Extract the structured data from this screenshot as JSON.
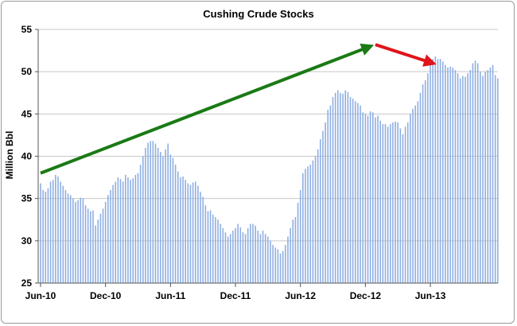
{
  "chart_data": {
    "type": "bar",
    "title": "Cushing Crude Stocks",
    "ylabel": "Million Bbl",
    "xlabel": "",
    "ylim": [
      25,
      55
    ],
    "yticks": [
      25,
      30,
      35,
      40,
      45,
      50,
      55
    ],
    "xticks": [
      {
        "index": 0,
        "label": "Jun-10"
      },
      {
        "index": 26,
        "label": "Dec-10"
      },
      {
        "index": 52,
        "label": "Jun-11"
      },
      {
        "index": 78,
        "label": "Dec-11"
      },
      {
        "index": 104,
        "label": "Jun-12"
      },
      {
        "index": 130,
        "label": "Dec-12"
      },
      {
        "index": 156,
        "label": "Jun-13"
      }
    ],
    "grid": true,
    "bar_color": "#8eaee2",
    "values": [
      36.8,
      36.0,
      35.8,
      36.2,
      37.0,
      37.2,
      37.8,
      37.6,
      37.0,
      36.5,
      36.0,
      35.6,
      35.4,
      35.0,
      34.6,
      34.8,
      35.1,
      35.0,
      34.2,
      33.8,
      33.5,
      33.6,
      31.8,
      32.5,
      33.2,
      33.8,
      34.6,
      35.4,
      36.0,
      36.6,
      37.0,
      37.5,
      37.3,
      37.0,
      37.8,
      37.5,
      37.2,
      37.4,
      37.8,
      38.0,
      39.0,
      40.0,
      41.0,
      41.6,
      41.8,
      41.8,
      41.5,
      41.0,
      40.5,
      40.0,
      40.8,
      41.5,
      40.2,
      39.8,
      39.0,
      38.2,
      37.5,
      37.6,
      37.2,
      36.8,
      36.6,
      36.9,
      37.0,
      36.5,
      35.8,
      35.2,
      34.2,
      33.5,
      33.6,
      33.1,
      32.8,
      32.5,
      32.0,
      31.5,
      31.0,
      30.5,
      30.8,
      31.2,
      31.5,
      32.0,
      31.6,
      31.0,
      30.8,
      31.5,
      32.0,
      32.0,
      31.8,
      31.2,
      30.8,
      31.2,
      30.8,
      30.5,
      30.0,
      29.5,
      29.2,
      29.0,
      28.5,
      28.8,
      29.5,
      30.5,
      31.5,
      32.5,
      32.8,
      34.5,
      36.0,
      38.0,
      38.5,
      38.8,
      39.0,
      39.5,
      40.0,
      40.8,
      42.0,
      43.0,
      44.0,
      45.5,
      46.0,
      47.0,
      47.5,
      47.8,
      47.5,
      47.4,
      47.8,
      47.6,
      47.0,
      46.8,
      46.5,
      46.3,
      46.0,
      45.2,
      45.0,
      44.8,
      45.3,
      45.2,
      44.6,
      44.8,
      44.2,
      43.8,
      43.8,
      43.5,
      43.8,
      44.0,
      44.1,
      44.0,
      43.3,
      42.6,
      43.5,
      44.0,
      45.0,
      45.6,
      46.0,
      46.5,
      47.5,
      48.5,
      49.0,
      49.8,
      50.8,
      51.5,
      51.8,
      51.5,
      51.5,
      51.2,
      50.8,
      50.5,
      50.6,
      50.5,
      50.2,
      49.8,
      49.2,
      49.5,
      49.4,
      49.8,
      50.2,
      51.0,
      51.3,
      51.0,
      50.0,
      49.5,
      50.0,
      50.2,
      50.5,
      50.8,
      49.6,
      49.2
    ],
    "annotations": [
      {
        "type": "arrow",
        "color": "#1a7a14",
        "from": [
          0,
          38.0
        ],
        "to": [
          132,
          53.0
        ]
      },
      {
        "type": "arrow",
        "color": "#e0141b",
        "from": [
          134,
          53.2
        ],
        "to": [
          157,
          51.0
        ]
      }
    ]
  }
}
